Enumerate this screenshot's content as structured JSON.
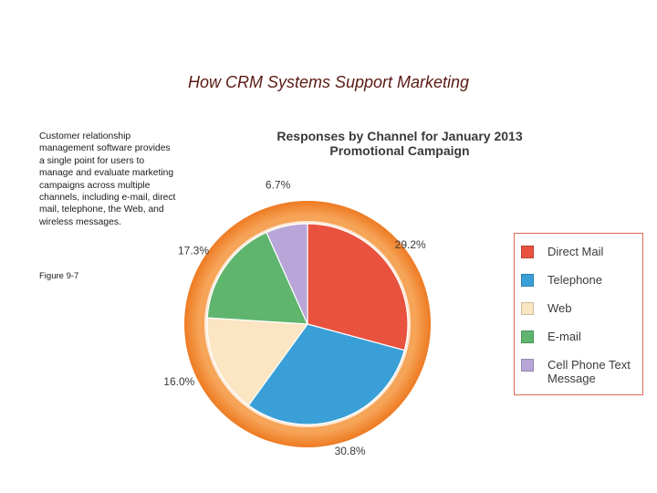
{
  "slide": {
    "title": "How CRM Systems Support Marketing",
    "description": "Customer relationship management software provides a single point for users to manage and evaluate marketing campaigns across multiple channels, including e-mail, direct mail, telephone, the Web, and wireless messages.",
    "figure_label": "Figure 9-7"
  },
  "chart_data": {
    "type": "pie",
    "title_lines": [
      "Responses by Channel for January 2013",
      "Promotional Campaign"
    ],
    "slices": [
      {
        "name": "Direct Mail",
        "value": 29.2,
        "label": "29.2%",
        "color": "#e8523f"
      },
      {
        "name": "Telephone",
        "value": 30.8,
        "label": "30.8%",
        "color": "#3a9fd6"
      },
      {
        "name": "Web",
        "value": 16.0,
        "label": "16.0%",
        "color": "#fbe5c2"
      },
      {
        "name": "E-mail",
        "value": 17.3,
        "label": "17.3%",
        "color": "#5fb56e"
      },
      {
        "name": "Cell Phone Text Message",
        "value": 6.7,
        "label": "6.7%",
        "color": "#b9a6d8"
      }
    ],
    "legend": [
      {
        "label": "Direct Mail",
        "color": "#e8523f"
      },
      {
        "label": "Telephone",
        "color": "#3a9fd6"
      },
      {
        "label": "Web",
        "color": "#fbe5c2"
      },
      {
        "label": "E-mail",
        "color": "#5fb56e"
      },
      {
        "label": "Cell Phone Text Message",
        "color": "#b9a6d8"
      }
    ],
    "legend_position": "right",
    "ring_color": "#f0842c"
  }
}
